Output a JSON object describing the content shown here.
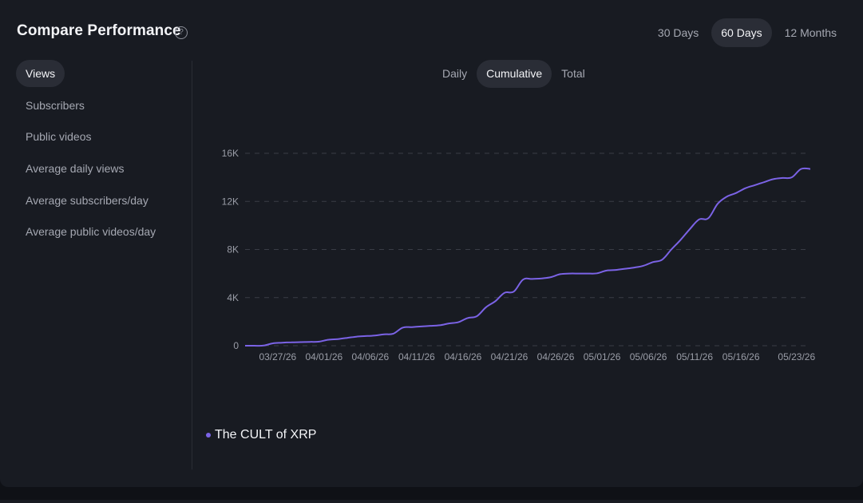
{
  "header": {
    "title": "Compare Performance",
    "help_icon": "help-circle-icon",
    "help_glyph": "?"
  },
  "range_tabs": [
    {
      "label": "30 Days",
      "active": false
    },
    {
      "label": "60 Days",
      "active": true
    },
    {
      "label": "12 Months",
      "active": false
    }
  ],
  "metrics": [
    {
      "label": "Views",
      "active": true
    },
    {
      "label": "Subscribers",
      "active": false
    },
    {
      "label": "Public videos",
      "active": false
    },
    {
      "label": "Average daily views",
      "active": false
    },
    {
      "label": "Average subscribers/day",
      "active": false
    },
    {
      "label": "Average public videos/day",
      "active": false
    }
  ],
  "mode_tabs": [
    {
      "label": "Daily",
      "active": false
    },
    {
      "label": "Cumulative",
      "active": true
    },
    {
      "label": "Total",
      "active": false
    }
  ],
  "colors": {
    "accent": "#7b63e6",
    "grid": "#3a3d46",
    "tick_text": "#9a9da7"
  },
  "chart_data": {
    "type": "line",
    "title": "",
    "xlabel": "",
    "ylabel": "",
    "ylim": [
      0,
      16000
    ],
    "y_ticks": [
      0,
      4000,
      8000,
      12000,
      16000
    ],
    "y_tick_labels": [
      "0",
      "4K",
      "8K",
      "12K",
      "16K"
    ],
    "x_tick_labels": [
      "03/27/26",
      "04/01/26",
      "04/06/26",
      "04/11/26",
      "04/16/26",
      "04/21/26",
      "04/26/26",
      "05/01/26",
      "05/06/26",
      "05/11/26",
      "05/16/26",
      "05/23/26"
    ],
    "grid": true,
    "legend_position": "bottom-left",
    "series": [
      {
        "name": "The CULT of XRP",
        "x": [
          "03/24/26",
          "03/25/26",
          "03/26/26",
          "03/27/26",
          "03/28/26",
          "03/29/26",
          "03/30/26",
          "03/31/26",
          "04/01/26",
          "04/02/26",
          "04/03/26",
          "04/04/26",
          "04/05/26",
          "04/06/26",
          "04/07/26",
          "04/08/26",
          "04/09/26",
          "04/10/26",
          "04/11/26",
          "04/12/26",
          "04/13/26",
          "04/14/26",
          "04/15/26",
          "04/16/26",
          "04/17/26",
          "04/18/26",
          "04/19/26",
          "04/20/26",
          "04/21/26",
          "04/22/26",
          "04/23/26",
          "04/24/26",
          "04/25/26",
          "04/26/26",
          "04/27/26",
          "04/28/26",
          "04/29/26",
          "04/30/26",
          "05/01/26",
          "05/02/26",
          "05/03/26",
          "05/04/26",
          "05/05/26",
          "05/06/26",
          "05/07/26",
          "05/08/26",
          "05/09/26",
          "05/10/26",
          "05/11/26",
          "05/12/26",
          "05/13/26",
          "05/14/26",
          "05/15/26",
          "05/16/26",
          "05/17/26",
          "05/18/26",
          "05/19/26",
          "05/20/26",
          "05/21/26",
          "05/22/26",
          "05/23/26",
          "05/24/26"
        ],
        "values": [
          0,
          0,
          10,
          200,
          250,
          280,
          300,
          320,
          340,
          500,
          550,
          650,
          750,
          800,
          850,
          950,
          1000,
          1500,
          1550,
          1600,
          1650,
          1700,
          1850,
          1950,
          2300,
          2450,
          3200,
          3700,
          4400,
          4500,
          5500,
          5550,
          5600,
          5700,
          5950,
          6000,
          6000,
          6000,
          6020,
          6250,
          6300,
          6400,
          6500,
          6650,
          6950,
          7150,
          8000,
          8800,
          9700,
          10500,
          10600,
          11800,
          12400,
          12700,
          13100,
          13350,
          13600,
          13850,
          13950,
          14000,
          14700,
          14700
        ]
      }
    ]
  }
}
